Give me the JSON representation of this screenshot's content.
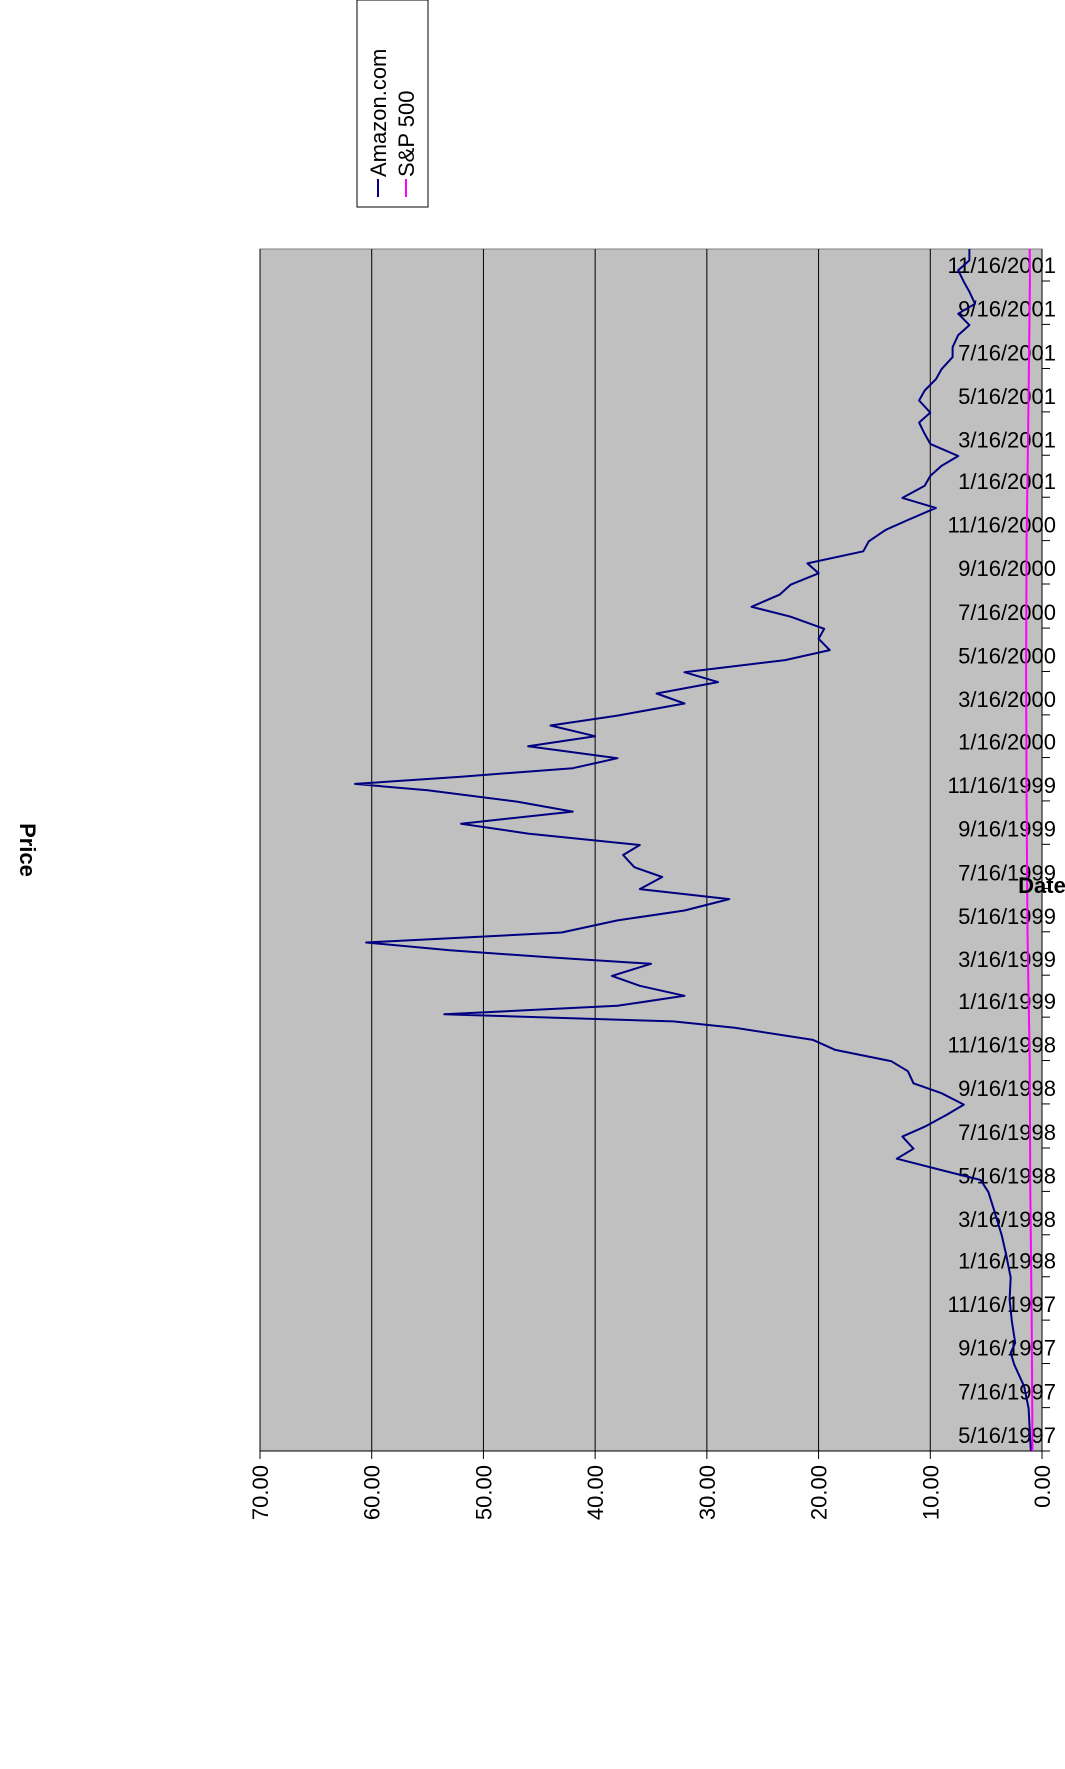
{
  "chart_data": {
    "type": "line",
    "orientation": "rotated-90-clockwise",
    "xlabel": "Date",
    "ylabel": "Price",
    "ylim": [
      0,
      70
    ],
    "y_ticks": [
      "70.00",
      "60.00",
      "50.00",
      "40.00",
      "30.00",
      "20.00",
      "10.00",
      "0.00"
    ],
    "x_ticks": [
      "5/16/1997",
      "7/16/1997",
      "9/16/1997",
      "11/16/1997",
      "1/16/1998",
      "3/16/1998",
      "5/16/1998",
      "7/16/1998",
      "9/16/1998",
      "11/16/1998",
      "1/16/1999",
      "3/16/1999",
      "5/16/1999",
      "7/16/1999",
      "9/16/1999",
      "11/16/1999",
      "1/16/2000",
      "3/16/2000",
      "5/16/2000",
      "7/16/2000",
      "9/16/2000",
      "11/16/2000",
      "1/16/2001",
      "3/16/2001",
      "5/16/2001",
      "7/16/2001",
      "9/16/2001",
      "11/16/2001"
    ],
    "grid": true,
    "plot_background": "#c0c0c0",
    "legend_position": "top-right",
    "series": [
      {
        "name": "Amazon.com",
        "color": "#000080",
        "x": [
          "1997-05-16",
          "1997-06-15",
          "1997-07-15",
          "1997-08-15",
          "1997-09-15",
          "1997-10-01",
          "1997-10-15",
          "1997-11-15",
          "1997-12-15",
          "1998-01-15",
          "1998-02-15",
          "1998-03-15",
          "1998-04-15",
          "1998-05-15",
          "1998-06-01",
          "1998-06-15",
          "1998-07-01",
          "1998-07-15",
          "1998-08-01",
          "1998-08-15",
          "1998-09-01",
          "1998-09-15",
          "1998-10-01",
          "1998-10-15",
          "1998-11-01",
          "1998-11-15",
          "1998-12-01",
          "1998-12-15",
          "1999-01-01",
          "1999-01-10",
          "1999-01-20",
          "1999-02-01",
          "1999-02-15",
          "1999-03-01",
          "1999-03-15",
          "1999-04-01",
          "1999-04-10",
          "1999-04-20",
          "1999-05-01",
          "1999-05-15",
          "1999-06-01",
          "1999-06-15",
          "1999-07-01",
          "1999-07-15",
          "1999-08-01",
          "1999-08-15",
          "1999-09-01",
          "1999-09-15",
          "1999-10-01",
          "1999-10-15",
          "1999-11-01",
          "1999-11-15",
          "1999-12-01",
          "1999-12-10",
          "1999-12-20",
          "2000-01-01",
          "2000-01-15",
          "2000-02-01",
          "2000-02-15",
          "2000-03-01",
          "2000-03-15",
          "2000-04-01",
          "2000-04-15",
          "2000-05-01",
          "2000-05-15",
          "2000-06-01",
          "2000-06-15",
          "2000-07-01",
          "2000-07-15",
          "2000-08-01",
          "2000-08-15",
          "2000-09-01",
          "2000-09-15",
          "2000-10-01",
          "2000-10-15",
          "2000-11-01",
          "2000-11-15",
          "2000-12-01",
          "2000-12-15",
          "2001-01-01",
          "2001-01-15",
          "2001-02-01",
          "2001-02-15",
          "2001-03-01",
          "2001-03-15",
          "2001-04-01",
          "2001-04-15",
          "2001-05-01",
          "2001-05-15",
          "2001-06-01",
          "2001-06-15",
          "2001-07-01",
          "2001-07-15",
          "2001-08-01",
          "2001-08-15",
          "2001-09-01",
          "2001-09-15",
          "2001-10-01",
          "2001-10-15",
          "2001-11-01",
          "2001-11-15",
          "2001-12-01",
          "2001-12-15",
          "2001-12-31"
        ],
        "values": [
          1.0,
          1.1,
          1.2,
          1.6,
          2.5,
          2.8,
          2.4,
          2.7,
          2.9,
          2.8,
          3.2,
          3.6,
          4.2,
          4.8,
          5.5,
          9.0,
          13.0,
          11.5,
          12.5,
          10.5,
          8.5,
          7.0,
          9.0,
          11.5,
          12.0,
          13.5,
          18.5,
          20.5,
          27.5,
          33.0,
          53.5,
          38.0,
          32.0,
          36.0,
          38.5,
          35.0,
          44.0,
          53.0,
          60.5,
          43.0,
          38.0,
          32.0,
          28.0,
          36.0,
          34.0,
          36.5,
          37.5,
          36.0,
          46.0,
          52.0,
          42.0,
          47.0,
          55.0,
          61.5,
          52.0,
          42.0,
          38.0,
          46.0,
          40.0,
          44.0,
          38.0,
          32.0,
          34.5,
          29.0,
          32.0,
          23.0,
          19.0,
          20.0,
          19.5,
          22.5,
          26.0,
          23.5,
          22.5,
          20.0,
          21.0,
          16.0,
          15.5,
          14.0,
          12.0,
          9.5,
          12.5,
          10.5,
          10.0,
          9.0,
          7.5,
          10.0,
          10.5,
          11.0,
          10.0,
          11.0,
          10.5,
          9.5,
          9.0,
          8.0,
          8.0,
          7.5,
          6.5,
          7.5,
          6.0,
          6.5,
          7.0,
          7.5,
          6.5,
          6.5
        ]
      },
      {
        "name": "S&P 500",
        "color": "#ff00ff",
        "x": [
          "1997-05-16",
          "1997-11-16",
          "1998-05-16",
          "1998-11-16",
          "1999-05-16",
          "1999-11-16",
          "2000-05-16",
          "2000-11-16",
          "2001-05-16",
          "2001-11-16",
          "2001-12-31"
        ],
        "values": [
          0.85,
          0.92,
          1.05,
          1.1,
          1.3,
          1.38,
          1.42,
          1.38,
          1.22,
          1.08,
          1.1
        ]
      }
    ]
  }
}
